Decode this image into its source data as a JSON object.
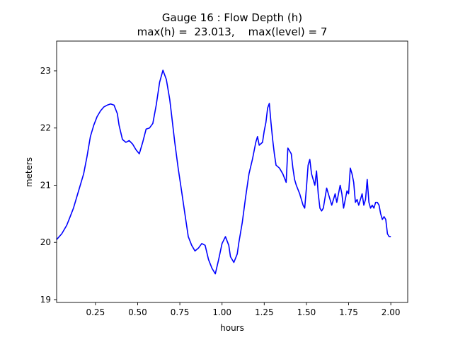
{
  "chart_data": {
    "type": "line",
    "title": "Gauge 16 : Flow Depth (h)",
    "subtitle": "max(h) =  23.013,    max(level) = 7",
    "xlabel": "hours",
    "ylabel": "meters",
    "xlim": [
      0.02,
      2.1
    ],
    "ylim": [
      18.95,
      23.52
    ],
    "xticks": [
      0.25,
      0.5,
      0.75,
      1.0,
      1.25,
      1.5,
      1.75,
      2.0
    ],
    "xtick_labels": [
      "0.25",
      "0.50",
      "0.75",
      "1.00",
      "1.25",
      "1.50",
      "1.75",
      "2.00"
    ],
    "yticks": [
      19,
      20,
      21,
      22,
      23
    ],
    "ytick_labels": [
      "19",
      "20",
      "21",
      "22",
      "23"
    ],
    "grid": false,
    "series": [
      {
        "color": "#0000ff",
        "x": [
          0.02,
          0.05,
          0.08,
          0.1,
          0.12,
          0.14,
          0.16,
          0.18,
          0.2,
          0.22,
          0.24,
          0.26,
          0.28,
          0.3,
          0.32,
          0.34,
          0.36,
          0.38,
          0.39,
          0.41,
          0.43,
          0.45,
          0.47,
          0.49,
          0.51,
          0.53,
          0.55,
          0.57,
          0.59,
          0.61,
          0.63,
          0.65,
          0.67,
          0.69,
          0.7,
          0.72,
          0.74,
          0.76,
          0.78,
          0.8,
          0.82,
          0.84,
          0.86,
          0.88,
          0.9,
          0.92,
          0.94,
          0.96,
          0.98,
          1.0,
          1.02,
          1.04,
          1.05,
          1.07,
          1.09,
          1.1,
          1.12,
          1.14,
          1.16,
          1.18,
          1.2,
          1.21,
          1.22,
          1.24,
          1.25,
          1.26,
          1.27,
          1.28,
          1.29,
          1.3,
          1.31,
          1.32,
          1.34,
          1.36,
          1.38,
          1.39,
          1.4,
          1.41,
          1.42,
          1.43,
          1.44,
          1.46,
          1.48,
          1.49,
          1.5,
          1.51,
          1.52,
          1.53,
          1.55,
          1.56,
          1.57,
          1.58,
          1.59,
          1.6,
          1.62,
          1.64,
          1.65,
          1.67,
          1.68,
          1.7,
          1.71,
          1.72,
          1.73,
          1.74,
          1.75,
          1.76,
          1.77,
          1.78,
          1.79,
          1.8,
          1.81,
          1.82,
          1.83,
          1.84,
          1.85,
          1.86,
          1.87,
          1.88,
          1.89,
          1.9,
          1.91,
          1.92,
          1.93,
          1.94,
          1.95,
          1.96,
          1.97,
          1.98,
          1.99,
          2.0
        ],
        "y": [
          20.05,
          20.15,
          20.3,
          20.45,
          20.6,
          20.8,
          21.0,
          21.2,
          21.5,
          21.85,
          22.05,
          22.2,
          22.3,
          22.37,
          22.4,
          22.42,
          22.4,
          22.25,
          22.05,
          21.8,
          21.75,
          21.78,
          21.72,
          21.62,
          21.55,
          21.75,
          21.98,
          22.0,
          22.08,
          22.4,
          22.8,
          23.01,
          22.85,
          22.5,
          22.25,
          21.75,
          21.3,
          20.9,
          20.5,
          20.1,
          19.95,
          19.85,
          19.9,
          19.98,
          19.95,
          19.7,
          19.55,
          19.45,
          19.7,
          19.98,
          20.1,
          19.95,
          19.75,
          19.65,
          19.8,
          20.0,
          20.35,
          20.8,
          21.2,
          21.45,
          21.75,
          21.85,
          21.7,
          21.75,
          21.95,
          22.1,
          22.35,
          22.43,
          22.1,
          21.8,
          21.55,
          21.35,
          21.3,
          21.2,
          21.05,
          21.65,
          21.6,
          21.55,
          21.3,
          21.1,
          21.0,
          20.85,
          20.65,
          20.6,
          20.95,
          21.35,
          21.45,
          21.2,
          21.0,
          21.25,
          20.85,
          20.6,
          20.55,
          20.6,
          20.95,
          20.75,
          20.65,
          20.85,
          20.7,
          21.0,
          20.85,
          20.6,
          20.75,
          20.9,
          20.85,
          21.3,
          21.2,
          21.05,
          20.7,
          20.75,
          20.65,
          20.75,
          20.85,
          20.65,
          20.75,
          21.1,
          20.7,
          20.6,
          20.65,
          20.6,
          20.7,
          20.7,
          20.65,
          20.5,
          20.4,
          20.45,
          20.4,
          20.15,
          20.1,
          20.1
        ]
      }
    ]
  }
}
